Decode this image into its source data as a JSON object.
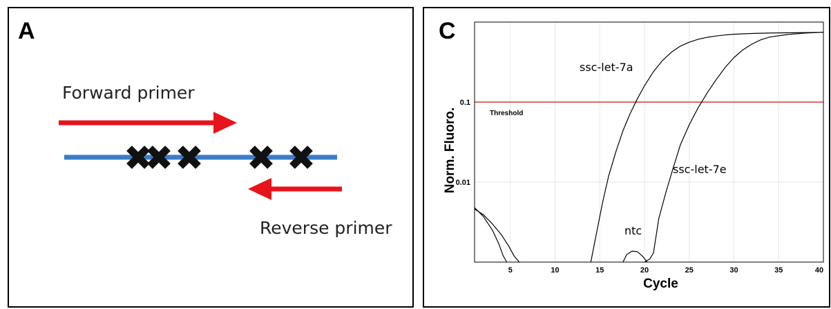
{
  "panel_a": {
    "letter": "A",
    "forward_label": "Forward primer",
    "reverse_label": "Reverse primer",
    "colors": {
      "primer": "#e8141b",
      "template": "#3a7cc7",
      "mark": "#111111"
    },
    "mismatch_icon": "cross-icon",
    "mismatch_count": 5
  },
  "panel_c": {
    "letter": "C",
    "chart_data": {
      "type": "line",
      "title": "",
      "xlabel": "Cycle",
      "ylabel": "Norm. Fluoro.",
      "xlim": [
        1,
        40
      ],
      "ylim": [
        0.001,
        1.0
      ],
      "yscale": "log",
      "grid": true,
      "xticks": [
        5,
        10,
        15,
        20,
        25,
        30,
        35,
        40
      ],
      "yticks": [
        {
          "value": 0.1,
          "label": "0.1"
        },
        {
          "value": 0.01,
          "label": "0.01"
        }
      ],
      "threshold": {
        "value": 0.1,
        "label": "Threshold",
        "color": "#cc1111"
      },
      "series": [
        {
          "name": "ssc-let-7a",
          "x": [
            14.0,
            14.6,
            15.3,
            16.0,
            16.8,
            17.6,
            18.4,
            19.2,
            20.0,
            21.0,
            22.0,
            23.0,
            24.0,
            25.0,
            26.0,
            27.0,
            28.0,
            29.0,
            30.0,
            32.0,
            34.0,
            36.0,
            38.0,
            40.0
          ],
          "y": [
            0.001,
            0.0022,
            0.0055,
            0.012,
            0.024,
            0.044,
            0.072,
            0.11,
            0.16,
            0.24,
            0.33,
            0.42,
            0.5,
            0.56,
            0.61,
            0.645,
            0.67,
            0.69,
            0.705,
            0.72,
            0.73,
            0.735,
            0.74,
            0.745
          ]
        },
        {
          "name": "ssc-let-7e",
          "x": [
            20.0,
            20.6,
            21.0,
            21.6,
            22.4,
            23.2,
            24.0,
            25.0,
            26.0,
            27.0,
            28.0,
            29.0,
            30.0,
            31.0,
            32.0,
            33.0,
            34.0,
            36.0,
            38.0,
            40.0
          ],
          "y": [
            0.001,
            0.0011,
            0.0013,
            0.0035,
            0.0075,
            0.015,
            0.029,
            0.052,
            0.085,
            0.13,
            0.19,
            0.27,
            0.36,
            0.45,
            0.53,
            0.6,
            0.65,
            0.7,
            0.73,
            0.745
          ]
        },
        {
          "name": "ntc",
          "x": [
            17.6,
            18.0,
            18.6,
            19.2,
            19.8,
            20.3
          ],
          "y": [
            0.001,
            0.00124,
            0.00137,
            0.00135,
            0.00118,
            0.001
          ]
        },
        {
          "name": "",
          "x": [
            1.0,
            2.0,
            3.0,
            3.7,
            4.2,
            4.6
          ],
          "y": [
            0.0048,
            0.0037,
            0.0025,
            0.0017,
            0.0012,
            0.001
          ]
        },
        {
          "name": "",
          "x": [
            1.0,
            2.0,
            3.0,
            4.0,
            4.8,
            5.4,
            6.0
          ],
          "y": [
            0.0046,
            0.0039,
            0.003,
            0.0022,
            0.0016,
            0.0012,
            0.001
          ]
        }
      ]
    }
  }
}
